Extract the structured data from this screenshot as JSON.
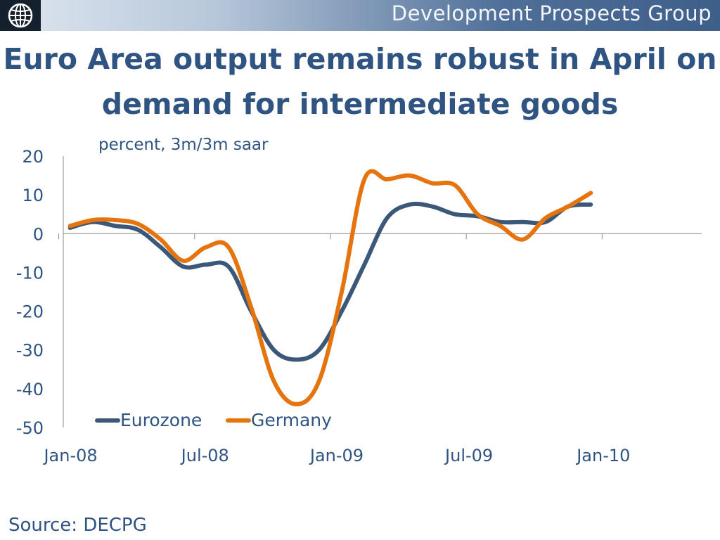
{
  "header": {
    "org_name": "Development Prospects Group",
    "logo_icon": "globe-icon",
    "title": "Euro Area output remains robust in  April on demand for  intermediate goods",
    "source": "Source: DECPG"
  },
  "colors": {
    "Eurozone": "#3c5878",
    "Germany": "#e5740e",
    "text": "#2f5482"
  },
  "chart_data": {
    "type": "line",
    "subtitle": "percent, 3m/3m saar",
    "ylim": [
      -50,
      20
    ],
    "yticks": [
      20,
      10,
      0,
      -10,
      -20,
      -30,
      -40,
      -50
    ],
    "xtick_labels": [
      "Jan-08",
      "Jul-08",
      "Jan-09",
      "Jul-09",
      "Jan-10"
    ],
    "xtick_positions": [
      0,
      6,
      12,
      18,
      24
    ],
    "x_start": "Jan-08",
    "x_end": "Apr-10",
    "legend_position": "bottom-left",
    "grid": false,
    "series": [
      {
        "name": "Eurozone",
        "values": [
          1.5,
          3.0,
          2.0,
          1.0,
          -3.5,
          -8.5,
          -8.0,
          -8.5,
          -20.0,
          -30.0,
          -32.5,
          -30.0,
          -20.0,
          -8.0,
          4.0,
          7.5,
          7.0,
          5.0,
          4.5,
          3.0,
          3.0,
          3.0,
          7.0,
          7.5
        ]
      },
      {
        "name": "Germany",
        "values": [
          2.0,
          3.5,
          3.5,
          2.5,
          -1.5,
          -7.0,
          -3.5,
          -3.5,
          -19.0,
          -38.0,
          -44.0,
          -38.0,
          -15.0,
          14.0,
          14.0,
          15.0,
          13.0,
          12.5,
          5.0,
          2.0,
          -1.5,
          4.0,
          7.0,
          10.5
        ]
      }
    ]
  }
}
